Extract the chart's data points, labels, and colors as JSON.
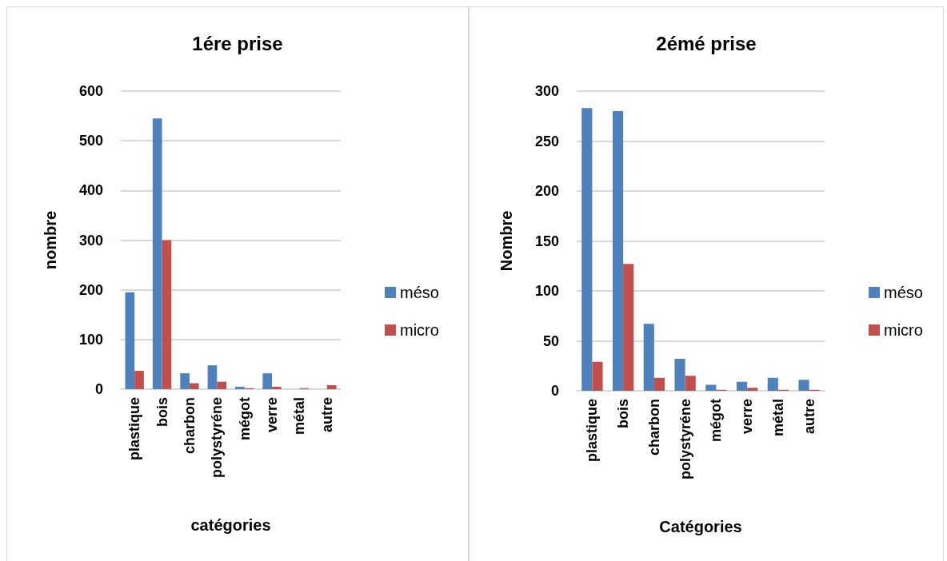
{
  "chart_data": [
    {
      "type": "bar",
      "title": "1ére prise",
      "xlabel": "catégories",
      "ylabel": "nombre",
      "categories": [
        "plastique",
        "bois",
        "charbon",
        "polystyréne",
        "mégot",
        "verre",
        "métal",
        "autre"
      ],
      "series": [
        {
          "name": "méso",
          "color": "#4f81bd",
          "values": [
            195,
            545,
            32,
            48,
            5,
            32,
            0,
            0
          ]
        },
        {
          "name": "micro",
          "color": "#c0504d",
          "values": [
            37,
            300,
            12,
            15,
            2,
            5,
            2,
            8
          ]
        }
      ],
      "ylim": [
        0,
        600
      ],
      "yticks": [
        0,
        100,
        200,
        300,
        400,
        500,
        600
      ],
      "grid": "y",
      "legend": "right"
    },
    {
      "type": "bar",
      "title": "2émé prise",
      "xlabel": "Catégories",
      "ylabel": "Nombre",
      "categories": [
        "plastique",
        "bois",
        "charbon",
        "polystyréne",
        "mégot",
        "verre",
        "métal",
        "autre"
      ],
      "series": [
        {
          "name": "méso",
          "color": "#4f81bd",
          "values": [
            283,
            280,
            67,
            32,
            6,
            9,
            13,
            11
          ]
        },
        {
          "name": "micro",
          "color": "#c0504d",
          "values": [
            29,
            127,
            13,
            15,
            1,
            3,
            1,
            1
          ]
        }
      ],
      "ylim": [
        0,
        300
      ],
      "yticks": [
        0,
        50,
        100,
        150,
        200,
        250,
        300
      ],
      "grid": "y",
      "legend": "right"
    }
  ]
}
